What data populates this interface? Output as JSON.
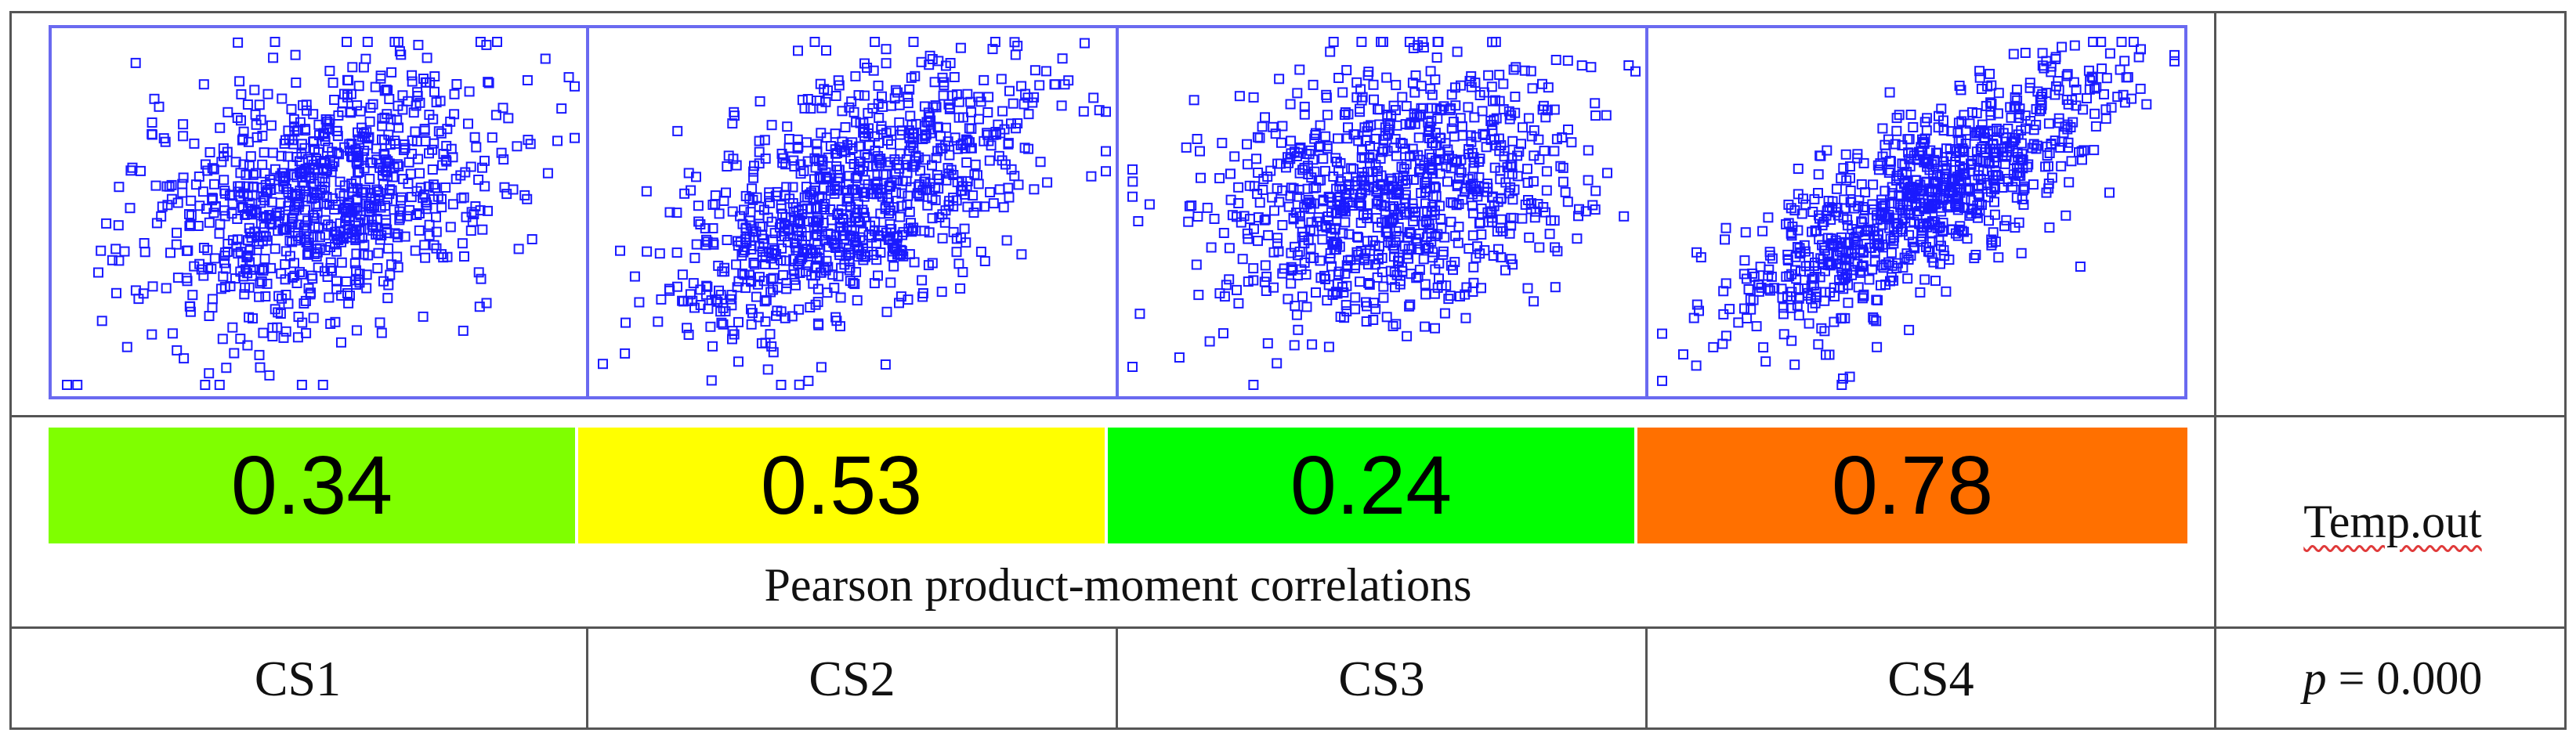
{
  "chart_data": {
    "type": "scatter",
    "panels": [
      {
        "label": "CS1",
        "correlation": 0.34,
        "correlation_text": "0.34",
        "color": "#7fff00"
      },
      {
        "label": "CS2",
        "correlation": 0.53,
        "correlation_text": "0.53",
        "color": "#ffff00"
      },
      {
        "label": "CS3",
        "correlation": 0.24,
        "correlation_text": "0.24",
        "color": "#00ff00"
      },
      {
        "label": "CS4",
        "correlation": 0.78,
        "correlation_text": "0.78",
        "color": "#ff7000"
      }
    ],
    "caption": "Pearson product-moment correlations",
    "variable": "Temp.out",
    "p_label": "p",
    "p_value": "= 0.000",
    "marker_color": "#1a1aff",
    "marker": "open-square"
  }
}
